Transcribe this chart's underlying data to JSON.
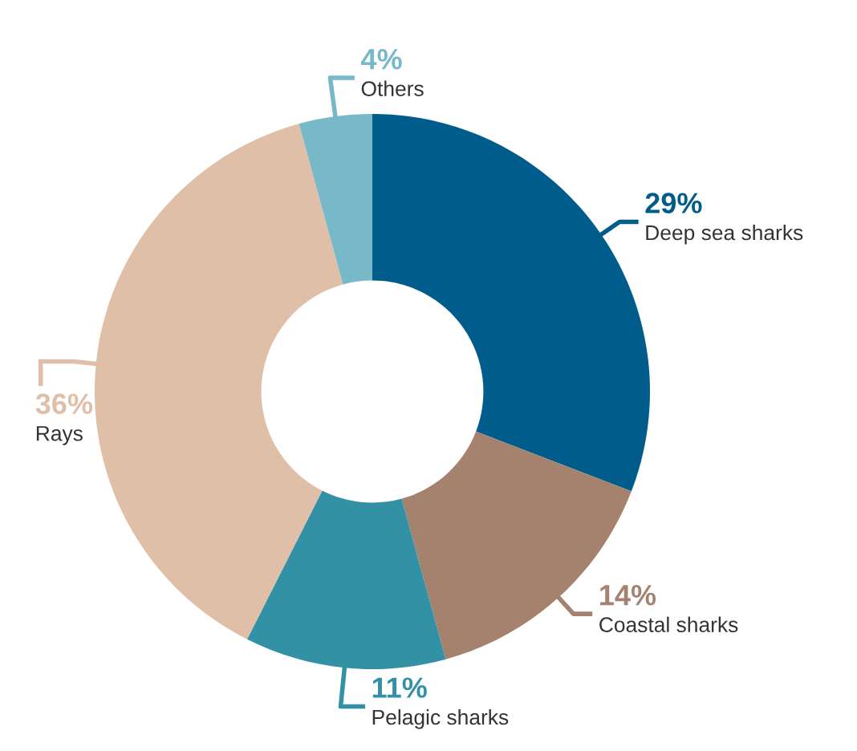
{
  "chart_data": {
    "type": "donut",
    "categories": [
      "Deep sea sharks",
      "Coastal sharks",
      "Pelagic sharks",
      "Rays",
      "Others"
    ],
    "values": [
      29,
      14,
      11,
      36,
      4
    ],
    "value_labels": [
      "29%",
      "14%",
      "11%",
      "36%",
      "4%"
    ],
    "colors": [
      "#005c8a",
      "#a5826e",
      "#3391a6",
      "#dfbfa8",
      "#77b8c9"
    ],
    "legend": false
  }
}
